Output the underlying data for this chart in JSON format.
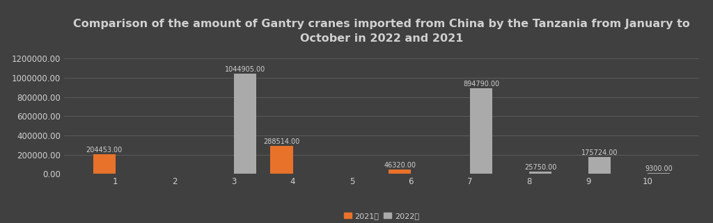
{
  "title": "Comparison of the amount of Gantry cranes imported from China by the Tanzania from January to\nOctober in 2022 and 2021",
  "months": [
    1,
    2,
    3,
    4,
    5,
    6,
    7,
    8,
    9,
    10
  ],
  "data_2021": [
    204453,
    0,
    0,
    288514,
    0,
    46320,
    0,
    0,
    0,
    0
  ],
  "data_2022": [
    0,
    0,
    1044905,
    0,
    0,
    0,
    894790,
    25750,
    175724,
    9300
  ],
  "color_2021": "#E8722A",
  "color_2022": "#AAAAAA",
  "background_color": "#404040",
  "plot_background_color": "#404040",
  "text_color": "#d0d0d0",
  "grid_color": "#606060",
  "ylim": [
    0,
    1300000
  ],
  "yticks": [
    0,
    200000,
    400000,
    600000,
    800000,
    1000000,
    1200000
  ],
  "legend_2021": "2021年",
  "legend_2022": "2022年",
  "bar_width": 0.38,
  "title_fontsize": 11.5,
  "label_fontsize": 7.0,
  "tick_fontsize": 8.5,
  "legend_fontsize": 8.0
}
